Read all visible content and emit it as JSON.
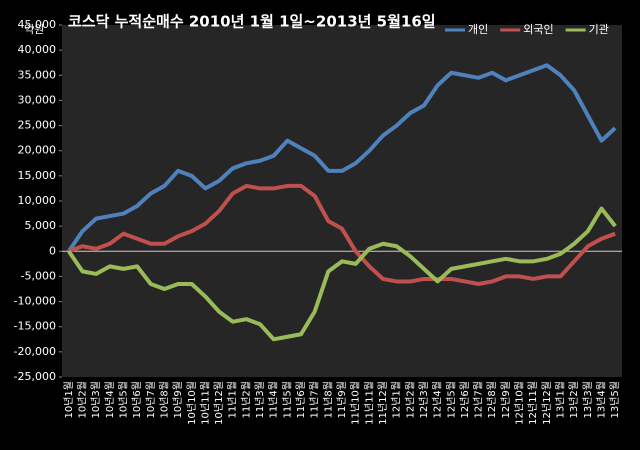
{
  "chart_data": {
    "type": "line",
    "title": "코스닥 누적순매수 2010년 1월 1일~2013년 5월16일",
    "y_label": "억원",
    "categories": [
      "10년1월",
      "10년2월",
      "10년3월",
      "10년4월",
      "10년5월",
      "10년6월",
      "10년7월",
      "10년8월",
      "10년9월",
      "10년10월",
      "10년11월",
      "10년12월",
      "11년1월",
      "11년2월",
      "11년3월",
      "11년4월",
      "11년5월",
      "11년6월",
      "11년7월",
      "11년8월",
      "11년9월",
      "11년10월",
      "11년11월",
      "11년12월",
      "12년1월",
      "12년2월",
      "12년3월",
      "12년4월",
      "12년5월",
      "12년6월",
      "12년7월",
      "12년8월",
      "12년9월",
      "12년10월",
      "12년11월",
      "12년12월",
      "13년1월",
      "13년2월",
      "13년3월",
      "13년4월",
      "13년5월"
    ],
    "series": [
      {
        "name": "개인",
        "color": "#4f81bd",
        "values": [
          0,
          4000,
          6500,
          7000,
          7500,
          9000,
          11500,
          13000,
          16000,
          15000,
          12500,
          14000,
          16500,
          17500,
          18000,
          19000,
          22000,
          20500,
          19000,
          16000,
          16000,
          17500,
          20000,
          23000,
          25000,
          27500,
          29000,
          33000,
          35500,
          35000,
          34500,
          35500,
          34000,
          35000,
          36000,
          37000,
          35000,
          32000,
          27000,
          22000,
          24500
        ]
      },
      {
        "name": "외국인",
        "color": "#c0504d",
        "values": [
          0,
          1000,
          500,
          1500,
          3500,
          2500,
          1500,
          1500,
          3000,
          4000,
          5500,
          8000,
          11500,
          13000,
          12500,
          12500,
          13000,
          13000,
          11000,
          6000,
          4500,
          0,
          -3000,
          -5500,
          -6000,
          -6000,
          -5500,
          -5500,
          -5500,
          -6000,
          -6500,
          -6000,
          -5000,
          -5000,
          -5500,
          -5000,
          -5000,
          -2000,
          1000,
          2500,
          3500
        ]
      },
      {
        "name": "기관",
        "color": "#9bbb59",
        "values": [
          0,
          -4000,
          -4500,
          -3000,
          -3500,
          -3000,
          -6500,
          -7500,
          -6500,
          -6500,
          -9000,
          -12000,
          -14000,
          -13500,
          -14500,
          -17500,
          -17000,
          -16500,
          -12000,
          -4000,
          -2000,
          -2500,
          500,
          1500,
          1000,
          -1000,
          -3500,
          -6000,
          -3500,
          -3000,
          -2500,
          -2000,
          -1500,
          -2000,
          -2000,
          -1500,
          -500,
          1500,
          4000,
          8500,
          5000
        ]
      }
    ],
    "ylim": [
      -25000,
      45000
    ],
    "yticks": [
      {
        "value": -25000,
        "label": "-25,000"
      },
      {
        "value": -20000,
        "label": "-20,000"
      },
      {
        "value": -15000,
        "label": "-15,000"
      },
      {
        "value": -10000,
        "label": "-10,000"
      },
      {
        "value": -5000,
        "label": "-5,000"
      },
      0,
      {
        "value": 5000,
        "label": "5,000"
      },
      {
        "value": 10000,
        "label": "10,000"
      },
      {
        "value": 15000,
        "label": "15,000"
      },
      {
        "value": 20000,
        "label": "20,000"
      },
      {
        "value": 25000,
        "label": "25,000"
      },
      {
        "value": 30000,
        "label": "30,000"
      },
      {
        "value": 35000,
        "label": "35,000"
      },
      {
        "value": 40000,
        "label": "40,000"
      },
      {
        "value": 45000,
        "label": "45,000"
      }
    ],
    "grid": false,
    "legend": "top-right"
  }
}
